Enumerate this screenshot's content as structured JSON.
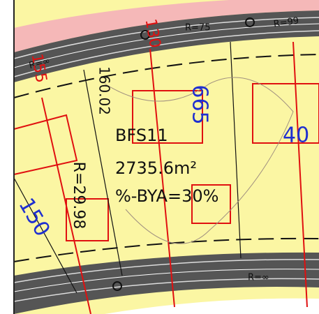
{
  "plan": {
    "area_id": "BFS11",
    "area_size": "2735.6m²",
    "coverage": "%-BYA=30%",
    "radius_labels": [
      "R=75",
      "R=99",
      "R=∞",
      "R=29.98",
      "R=∞"
    ],
    "dimension": "160.02",
    "red_labels": [
      "130",
      "155"
    ],
    "blue_labels": [
      "665",
      "150",
      "40"
    ]
  }
}
